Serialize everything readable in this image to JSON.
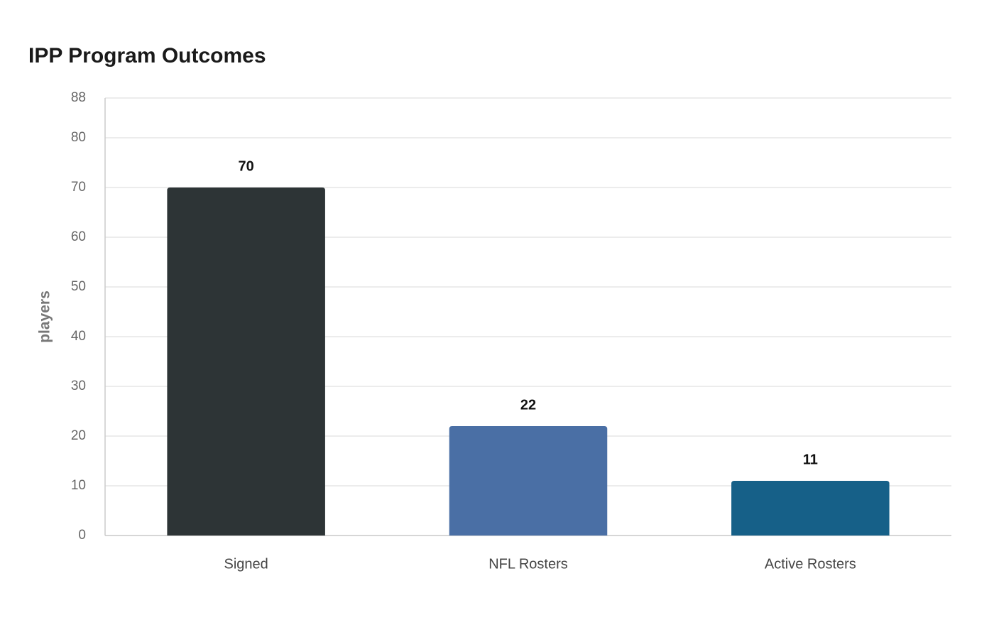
{
  "chart_data": {
    "type": "bar",
    "title": "IPP Program Outcomes",
    "y_label": "players",
    "categories": [
      "Signed",
      "NFL Rosters",
      "Active Rosters"
    ],
    "values": [
      70,
      22,
      11
    ],
    "colors": [
      "#2d3436",
      "#4a6fa5",
      "#166088"
    ],
    "ylim": [
      0,
      88
    ],
    "yticks": [
      0,
      10,
      20,
      30,
      40,
      50,
      60,
      70,
      80,
      88
    ],
    "grid": true
  }
}
